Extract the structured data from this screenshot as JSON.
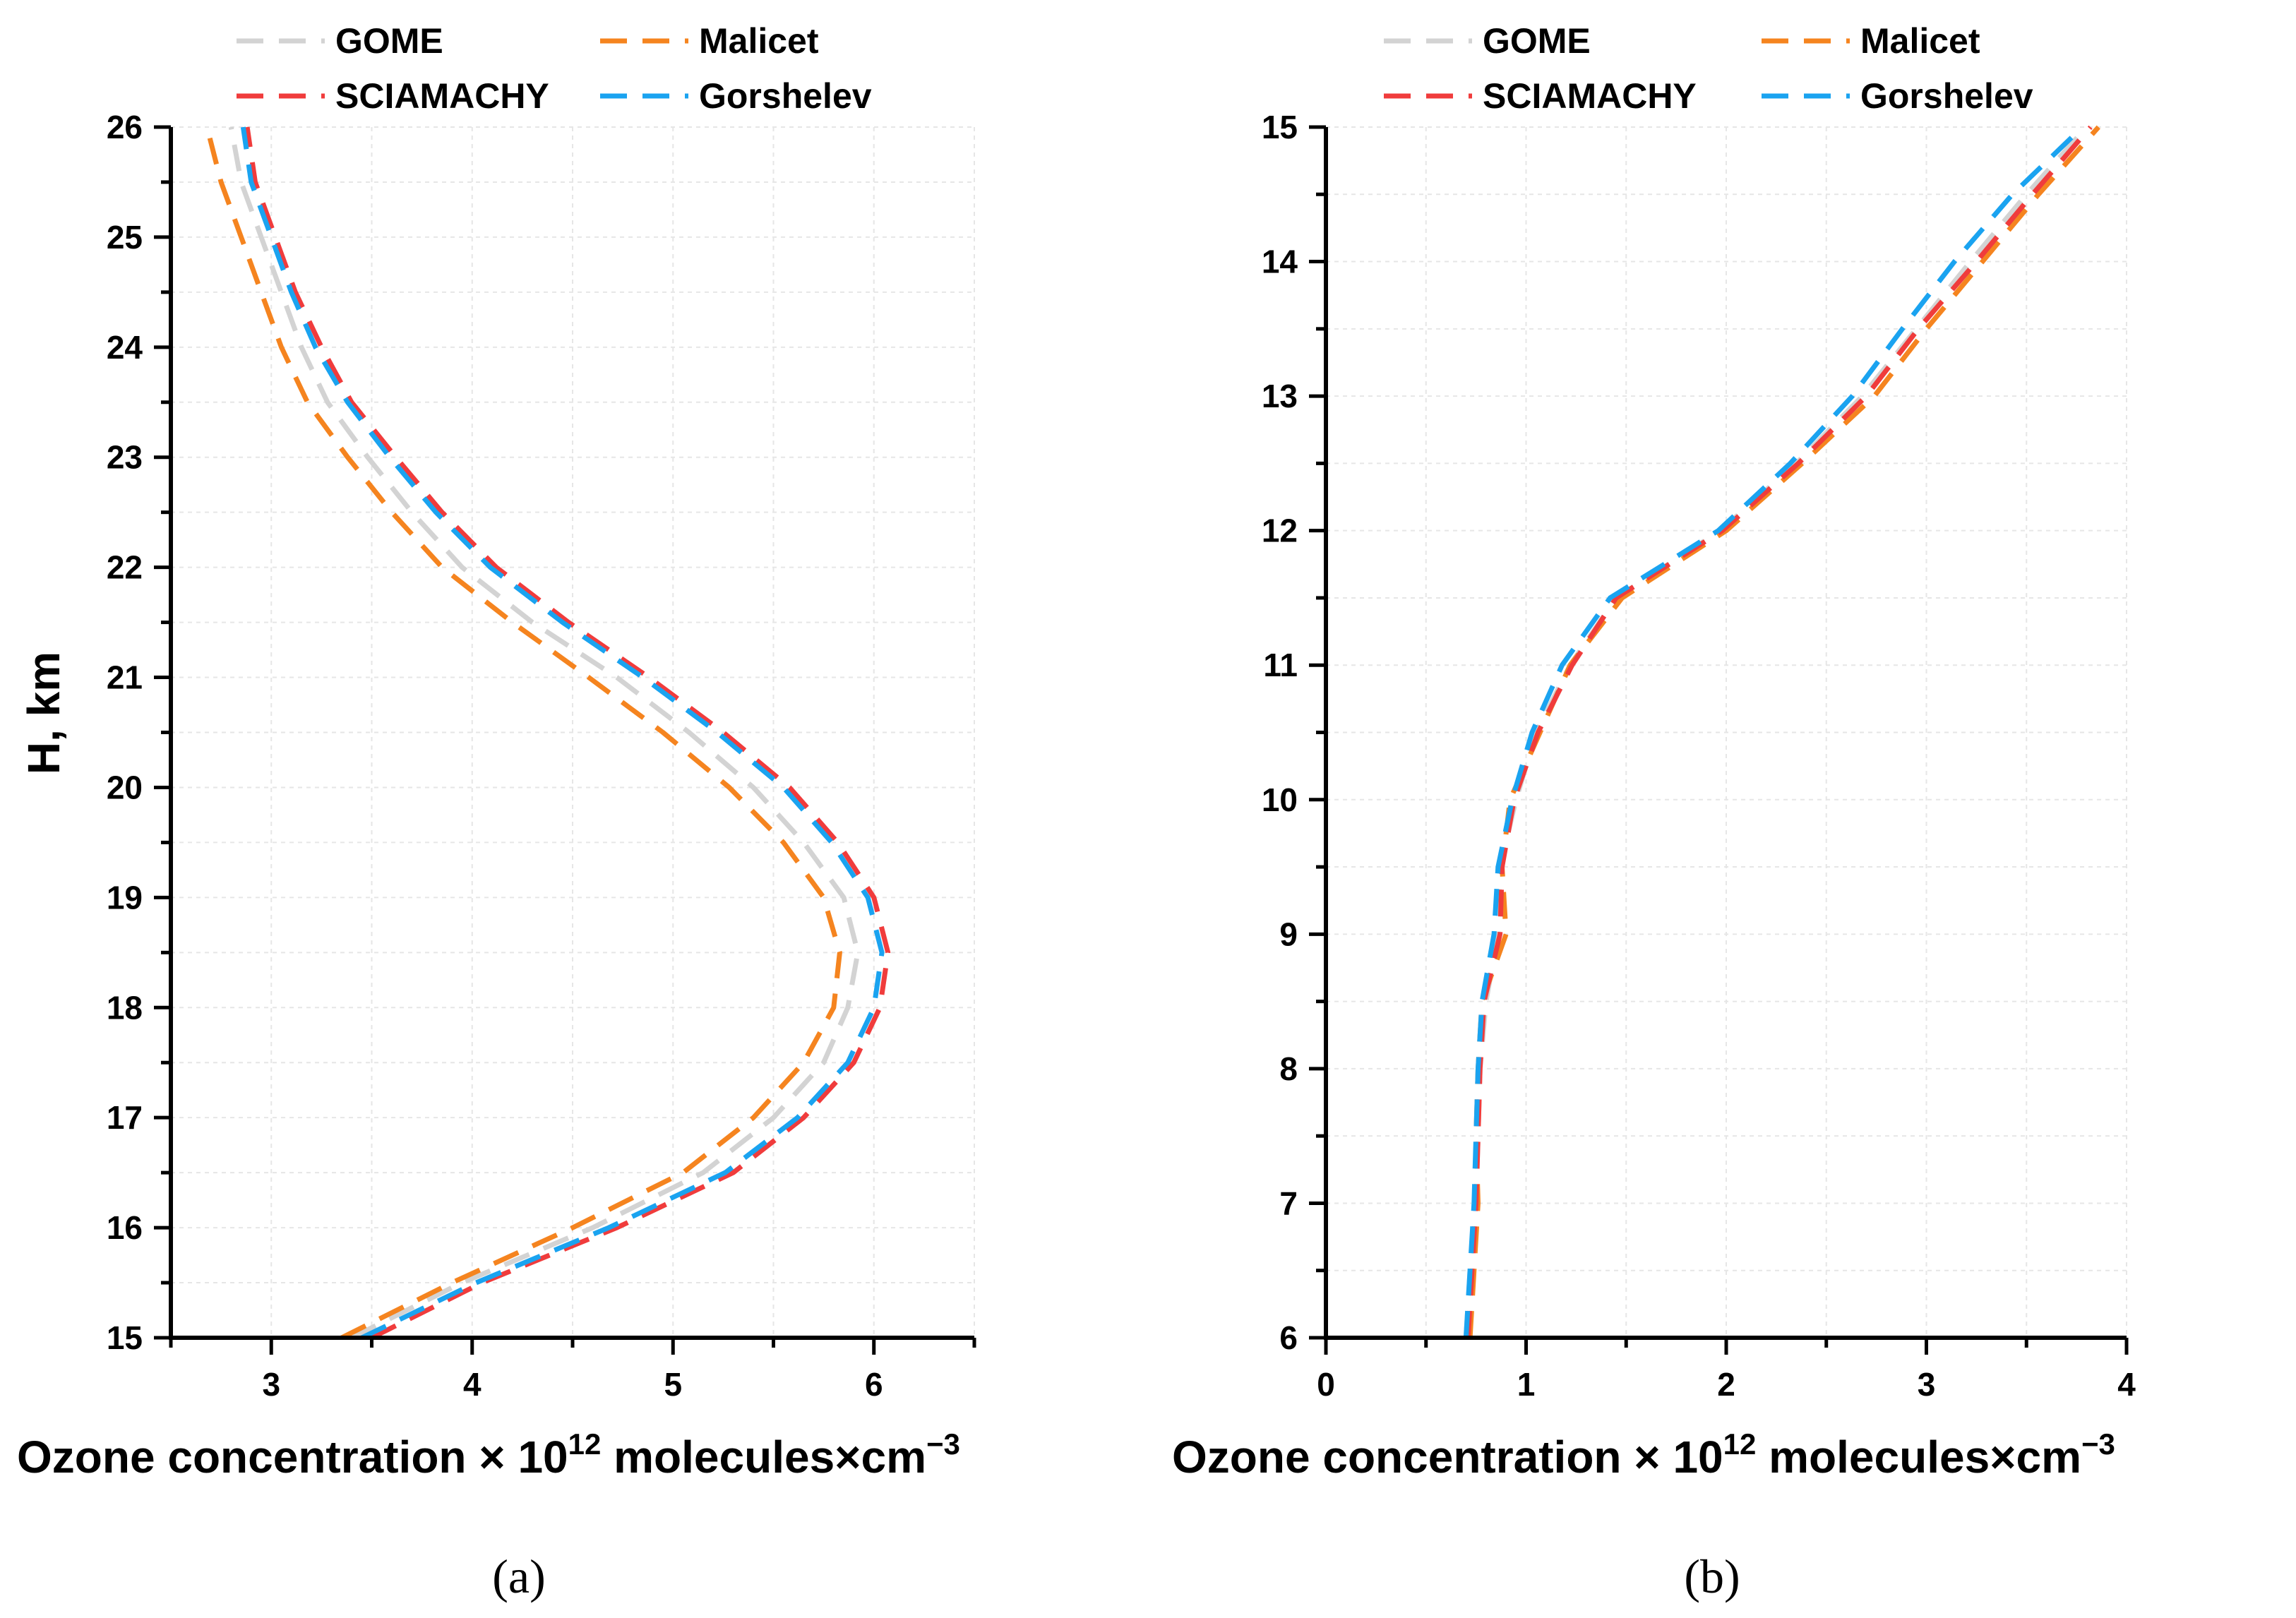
{
  "chart_data": [
    {
      "type": "line",
      "panel_label": "(a)",
      "xlabel": "Ozone concentration × 10",
      "xlabel_sup": "12",
      "xlabel_tail": " molecules×cm",
      "xlabel_sup2": "−3",
      "ylabel": "H, km",
      "xlim": [
        2.5,
        6.5
      ],
      "ylim": [
        15,
        26
      ],
      "xticks": [
        3,
        4,
        5,
        6
      ],
      "yticks": [
        15,
        16,
        17,
        18,
        19,
        20,
        21,
        22,
        23,
        24,
        25,
        26
      ],
      "legend": [
        "GOME",
        "Malicet",
        "SCIAMACHY",
        "Gorshelev"
      ],
      "legend_position": "top",
      "grid": true,
      "y": [
        15,
        15.5,
        16,
        16.5,
        17,
        17.5,
        18,
        18.5,
        19,
        19.5,
        20,
        20.5,
        21,
        21.5,
        22,
        22.5,
        23,
        23.5,
        24,
        24.5,
        25,
        25.5,
        26
      ],
      "series": [
        {
          "name": "GOME",
          "color": "#d3d3d3",
          "values": [
            3.4,
            3.95,
            4.6,
            5.15,
            5.5,
            5.75,
            5.87,
            5.92,
            5.85,
            5.65,
            5.4,
            5.08,
            4.72,
            4.3,
            3.95,
            3.7,
            3.48,
            3.28,
            3.15,
            3.05,
            2.95,
            2.85,
            2.8
          ]
        },
        {
          "name": "Malicet",
          "color": "#f5841f",
          "values": [
            3.35,
            3.9,
            4.5,
            5.05,
            5.4,
            5.65,
            5.8,
            5.83,
            5.75,
            5.55,
            5.28,
            4.95,
            4.58,
            4.2,
            3.85,
            3.6,
            3.38,
            3.18,
            3.05,
            2.95,
            2.85,
            2.75,
            2.68
          ]
        },
        {
          "name": "SCIAMACHY",
          "color": "#f03c3c",
          "values": [
            3.5,
            4.05,
            4.72,
            5.3,
            5.65,
            5.9,
            6.03,
            6.07,
            6.0,
            5.82,
            5.58,
            5.25,
            4.88,
            4.48,
            4.12,
            3.85,
            3.62,
            3.4,
            3.25,
            3.12,
            3.02,
            2.92,
            2.88
          ]
        },
        {
          "name": "Gorshelev",
          "color": "#1aa3f0",
          "values": [
            3.45,
            4.02,
            4.68,
            5.26,
            5.62,
            5.87,
            6.0,
            6.04,
            5.97,
            5.79,
            5.55,
            5.22,
            4.85,
            4.45,
            4.09,
            3.82,
            3.59,
            3.38,
            3.22,
            3.1,
            3.0,
            2.9,
            2.86
          ]
        }
      ]
    },
    {
      "type": "line",
      "panel_label": "(b)",
      "xlabel": "Ozone concentration × 10",
      "xlabel_sup": "12",
      "xlabel_tail": " molecules×cm",
      "xlabel_sup2": "−3",
      "ylabel": "",
      "xlim": [
        0,
        4
      ],
      "ylim": [
        6,
        15
      ],
      "xticks": [
        0,
        1,
        2,
        3,
        4
      ],
      "yticks": [
        6,
        7,
        8,
        9,
        10,
        11,
        12,
        13,
        14,
        15
      ],
      "legend": [
        "GOME",
        "Malicet",
        "SCIAMACHY",
        "Gorshelev"
      ],
      "legend_position": "top",
      "grid": true,
      "y": [
        6,
        6.5,
        7,
        7.5,
        8,
        8.5,
        9,
        9.5,
        10,
        10.5,
        11,
        11.5,
        12,
        12.5,
        13,
        13.5,
        14,
        14.5,
        15
      ],
      "series": [
        {
          "name": "GOME",
          "color": "#d3d3d3",
          "values": [
            0.7,
            0.72,
            0.75,
            0.76,
            0.77,
            0.8,
            0.86,
            0.87,
            0.95,
            1.05,
            1.22,
            1.45,
            1.97,
            2.35,
            2.68,
            2.95,
            3.22,
            3.5,
            3.8
          ]
        },
        {
          "name": "Malicet",
          "color": "#f5841f",
          "values": [
            0.72,
            0.74,
            0.76,
            0.75,
            0.76,
            0.78,
            0.9,
            0.88,
            0.92,
            1.07,
            1.22,
            1.48,
            2.0,
            2.38,
            2.74,
            3.0,
            3.28,
            3.56,
            3.86
          ]
        },
        {
          "name": "SCIAMACHY",
          "color": "#f03c3c",
          "values": [
            0.71,
            0.73,
            0.75,
            0.76,
            0.77,
            0.79,
            0.87,
            0.88,
            0.94,
            1.06,
            1.23,
            1.45,
            1.98,
            2.36,
            2.7,
            2.96,
            3.25,
            3.53,
            3.82
          ]
        },
        {
          "name": "Gorshelev",
          "color": "#1aa3f0",
          "values": [
            0.7,
            0.72,
            0.74,
            0.75,
            0.76,
            0.78,
            0.84,
            0.86,
            0.93,
            1.03,
            1.18,
            1.42,
            1.96,
            2.32,
            2.63,
            2.88,
            3.14,
            3.43,
            3.78
          ]
        }
      ]
    }
  ]
}
